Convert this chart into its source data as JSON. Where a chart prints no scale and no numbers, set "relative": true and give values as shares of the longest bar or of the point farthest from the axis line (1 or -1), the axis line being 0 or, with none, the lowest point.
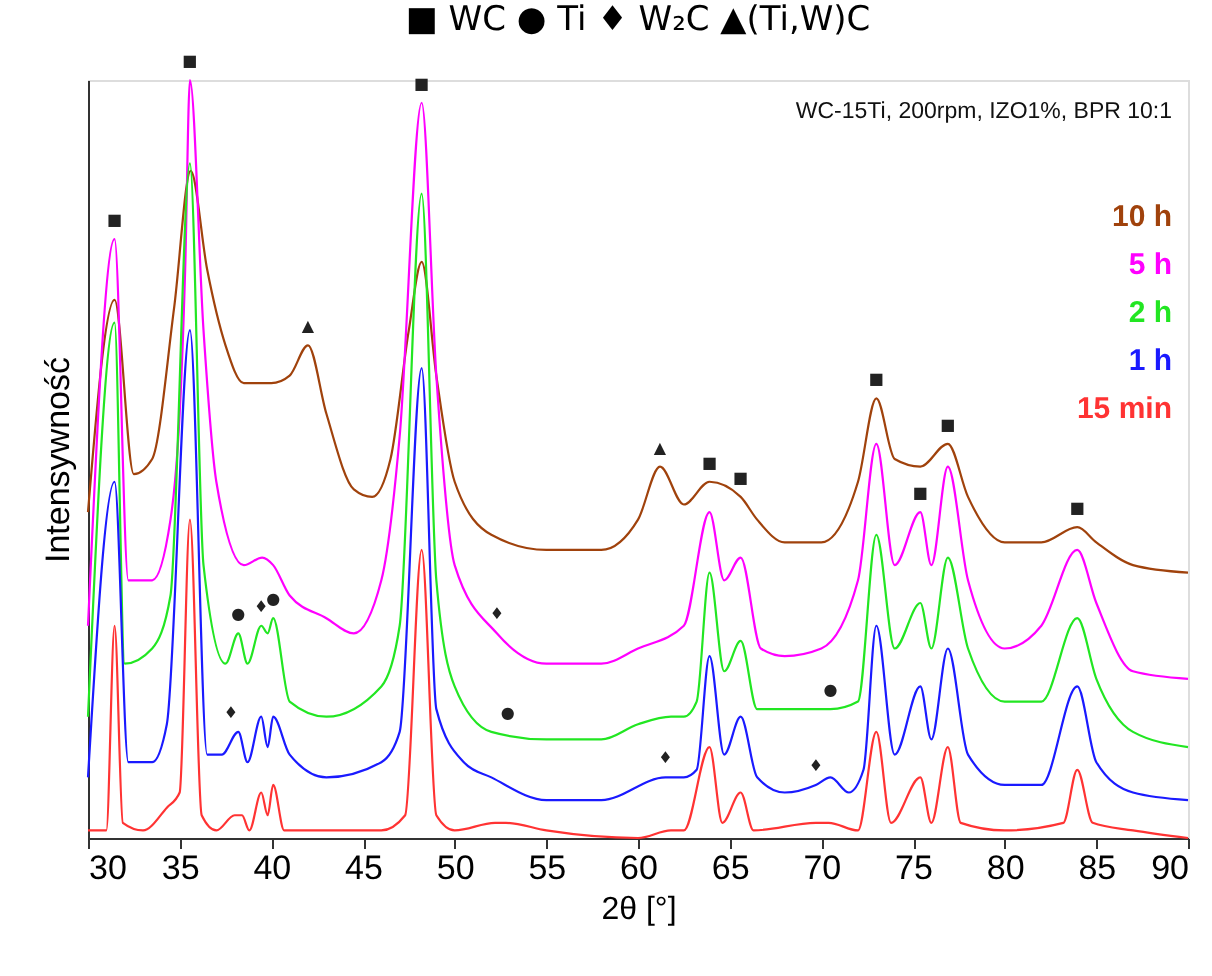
{
  "chart_data": {
    "type": "line",
    "relative": true,
    "title": "■ WC   ● Ti   ♦ W₂C   ▲(Ti,W)C",
    "xlabel": "2θ [°]",
    "ylabel": "Intensywność",
    "xlim": [
      30,
      90
    ],
    "xticks": [
      30,
      35,
      40,
      45,
      50,
      55,
      60,
      65,
      70,
      75,
      80,
      85,
      90
    ],
    "tick_labels": "x",
    "grid": false,
    "legend": "top right",
    "marker": "none",
    "line_style": "solid",
    "annotations": [
      "WC-15Ti, 200rpm, IZO1%, BPR 10:1",
      {
        "text": "■",
        "x": 31.45,
        "y": 0.79
      },
      {
        "text": "■",
        "x": 35.56,
        "y": 1.0
      },
      {
        "text": "■",
        "x": 48.2,
        "y": 0.97
      },
      {
        "text": "▲",
        "x": 42.0,
        "y": 0.65
      },
      {
        "text": "▲",
        "x": 61.2,
        "y": 0.49
      },
      {
        "text": "■",
        "x": 63.9,
        "y": 0.47
      },
      {
        "text": "■",
        "x": 65.6,
        "y": 0.45
      },
      {
        "text": "■",
        "x": 73.0,
        "y": 0.58
      },
      {
        "text": "■",
        "x": 76.9,
        "y": 0.52
      },
      {
        "text": "■",
        "x": 75.4,
        "y": 0.43
      },
      {
        "text": "■",
        "x": 83.96,
        "y": 0.41
      },
      {
        "text": "●",
        "x": 38.2,
        "y": 0.27
      },
      {
        "text": "♦",
        "x": 39.45,
        "y": 0.28
      },
      {
        "text": "●",
        "x": 40.1,
        "y": 0.29
      },
      {
        "text": "♦",
        "x": 52.3,
        "y": 0.27
      },
      {
        "text": "●",
        "x": 52.9,
        "y": 0.14
      },
      {
        "text": "♦",
        "x": 37.8,
        "y": 0.14
      },
      {
        "text": "♦",
        "x": 61.5,
        "y": 0.08
      },
      {
        "text": "●",
        "x": 70.5,
        "y": 0.17
      },
      {
        "text": "♦",
        "x": 69.7,
        "y": 0.07
      }
    ],
    "series": [
      {
        "name": "10 h",
        "color": "#a0420c",
        "x": [
          30,
          31.45,
          32.5,
          33.5,
          34.7,
          35.6,
          36.5,
          37.5,
          38.5,
          40,
          41,
          42.0,
          43,
          44.5,
          45.5,
          46.5,
          47.5,
          48.2,
          49,
          50,
          52,
          55,
          58,
          60,
          61.2,
          62.5,
          63.9,
          65.6,
          66.5,
          68,
          70,
          72,
          73.0,
          74,
          75.4,
          76.9,
          78,
          80,
          82,
          83.96,
          85,
          87,
          90
        ],
        "values": [
          0.43,
          0.71,
          0.48,
          0.5,
          0.7,
          0.88,
          0.75,
          0.65,
          0.6,
          0.6,
          0.61,
          0.65,
          0.56,
          0.46,
          0.45,
          0.5,
          0.67,
          0.76,
          0.61,
          0.47,
          0.4,
          0.38,
          0.38,
          0.42,
          0.49,
          0.44,
          0.47,
          0.45,
          0.42,
          0.39,
          0.39,
          0.47,
          0.58,
          0.5,
          0.49,
          0.52,
          0.45,
          0.39,
          0.39,
          0.41,
          0.39,
          0.36,
          0.35
        ]
      },
      {
        "name": "5 h",
        "color": "#ff00ff",
        "x": [
          30,
          31.45,
          32.2,
          33.5,
          34.5,
          35.3,
          35.56,
          36.3,
          37,
          38.5,
          39.5,
          40.1,
          41,
          43,
          44.5,
          46,
          47,
          48.2,
          49,
          50,
          52.3,
          55,
          58,
          60,
          62.5,
          63.9,
          64.7,
          65.6,
          66.7,
          68,
          70,
          72,
          73.0,
          74,
          75.4,
          76,
          76.9,
          78,
          80,
          82,
          83.96,
          85,
          87,
          90
        ],
        "values": [
          0.28,
          0.79,
          0.34,
          0.34,
          0.42,
          0.75,
          1.0,
          0.67,
          0.47,
          0.36,
          0.37,
          0.36,
          0.32,
          0.29,
          0.27,
          0.34,
          0.53,
          0.97,
          0.61,
          0.36,
          0.27,
          0.23,
          0.23,
          0.25,
          0.28,
          0.43,
          0.34,
          0.37,
          0.25,
          0.24,
          0.25,
          0.34,
          0.52,
          0.36,
          0.43,
          0.36,
          0.49,
          0.34,
          0.25,
          0.28,
          0.38,
          0.31,
          0.22,
          0.21
        ]
      },
      {
        "name": "2 h",
        "color": "#22e622",
        "x": [
          30,
          31.45,
          32,
          33.5,
          34.5,
          35.56,
          36.3,
          37.5,
          38.2,
          38.7,
          39.45,
          39.8,
          40.1,
          41,
          43,
          46,
          47,
          48.2,
          49,
          50,
          52,
          55,
          58,
          60,
          61.8,
          62.5,
          63.2,
          63.9,
          64.7,
          65.6,
          66.5,
          69,
          70.5,
          72,
          73.0,
          74,
          75.4,
          76,
          76.9,
          78,
          80,
          82,
          83.96,
          85,
          87,
          90
        ],
        "values": [
          0.16,
          0.68,
          0.23,
          0.25,
          0.32,
          0.89,
          0.36,
          0.23,
          0.27,
          0.23,
          0.28,
          0.27,
          0.29,
          0.18,
          0.16,
          0.2,
          0.28,
          0.85,
          0.34,
          0.2,
          0.14,
          0.13,
          0.13,
          0.15,
          0.16,
          0.16,
          0.18,
          0.35,
          0.22,
          0.26,
          0.17,
          0.17,
          0.17,
          0.18,
          0.4,
          0.25,
          0.31,
          0.25,
          0.37,
          0.25,
          0.18,
          0.18,
          0.29,
          0.21,
          0.14,
          0.12
        ]
      },
      {
        "name": "1 h",
        "color": "#1a1aff",
        "x": [
          30,
          31.45,
          32.2,
          33.5,
          34.3,
          35.56,
          36.5,
          37.3,
          38.2,
          38.7,
          39.45,
          39.8,
          40.1,
          41,
          43,
          46,
          47,
          48.2,
          49,
          50.5,
          52,
          55,
          58,
          61.5,
          62.5,
          63.2,
          63.9,
          64.7,
          65.6,
          66.5,
          68,
          69.7,
          70.5,
          71.5,
          72.3,
          73.0,
          74,
          75.4,
          76,
          76.9,
          78,
          80,
          82,
          83.96,
          85,
          87,
          90
        ],
        "values": [
          0.08,
          0.47,
          0.1,
          0.1,
          0.15,
          0.67,
          0.11,
          0.11,
          0.14,
          0.1,
          0.16,
          0.12,
          0.16,
          0.11,
          0.08,
          0.1,
          0.14,
          0.62,
          0.17,
          0.1,
          0.08,
          0.05,
          0.05,
          0.08,
          0.08,
          0.09,
          0.24,
          0.11,
          0.16,
          0.08,
          0.06,
          0.07,
          0.08,
          0.06,
          0.09,
          0.28,
          0.11,
          0.2,
          0.13,
          0.25,
          0.11,
          0.07,
          0.07,
          0.2,
          0.1,
          0.06,
          0.05
        ]
      },
      {
        "name": "15 min",
        "color": "#ff3333",
        "x": [
          30,
          31,
          31.45,
          31.9,
          33,
          34.3,
          35,
          35.56,
          36.2,
          37,
          38,
          38.4,
          38.8,
          39.45,
          39.8,
          40.1,
          40.7,
          43.4,
          46,
          47.3,
          48.2,
          49,
          50,
          52.2,
          52.8,
          55,
          60,
          61.8,
          62.5,
          63.9,
          64.6,
          65.6,
          66.3,
          69.7,
          70.4,
          72,
          73.0,
          73.8,
          75.4,
          76,
          76.9,
          77.6,
          80,
          83.2,
          83.96,
          84.8,
          87,
          90
        ],
        "values": [
          0.01,
          0.01,
          0.28,
          0.02,
          0.01,
          0.04,
          0.06,
          0.42,
          0.03,
          0.01,
          0.03,
          0.03,
          0.01,
          0.06,
          0.03,
          0.07,
          0.01,
          0.01,
          0.01,
          0.03,
          0.38,
          0.03,
          0.01,
          0.02,
          0.02,
          0.01,
          0.0,
          0.01,
          0.01,
          0.12,
          0.02,
          0.06,
          0.01,
          0.02,
          0.02,
          0.01,
          0.14,
          0.02,
          0.08,
          0.02,
          0.12,
          0.02,
          0.01,
          0.02,
          0.09,
          0.02,
          0.01,
          0.0
        ]
      }
    ]
  }
}
